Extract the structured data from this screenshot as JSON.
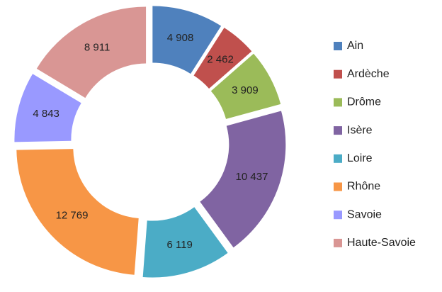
{
  "chart_data": {
    "type": "donut",
    "categories": [
      "Ain",
      "Ardèche",
      "Drôme",
      "Isère",
      "Loire",
      "Rhône",
      "Savoie",
      "Haute-Savoie"
    ],
    "values": [
      4908,
      2462,
      3909,
      10437,
      6119,
      12769,
      4843,
      8911
    ],
    "value_labels": [
      "4 908",
      "2 462",
      "3 909",
      "10 437",
      "6 119",
      "12 769",
      "4 843",
      "8 911"
    ],
    "colors": [
      "#4F81BD",
      "#C0504D",
      "#9BBB59",
      "#8064A2",
      "#4BACC6",
      "#F79646",
      "#9999FF",
      "#D99694"
    ],
    "legend": "right"
  }
}
